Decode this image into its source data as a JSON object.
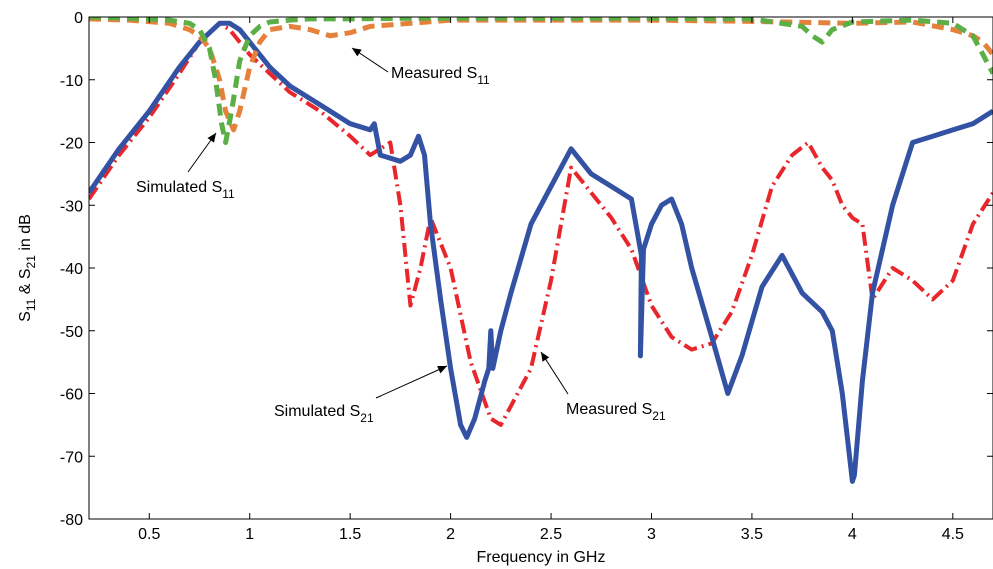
{
  "chart_data": {
    "type": "line",
    "xlabel": "Frequency in GHz",
    "ylabel_main": "S",
    "ylabel_sub1": "11",
    "ylabel_mid": " & S",
    "ylabel_sub2": "21",
    "ylabel_tail": " in dB",
    "xlim": [
      0.2,
      4.7
    ],
    "ylim": [
      -80,
      0
    ],
    "xticks": [
      0.5,
      1,
      1.5,
      2,
      2.5,
      3,
      3.5,
      4,
      4.5
    ],
    "xtick_labels": [
      "0.5",
      "1",
      "1.5",
      "2",
      "2.5",
      "3",
      "3.5",
      "4",
      "4.5"
    ],
    "yticks": [
      0,
      -10,
      -20,
      -30,
      -40,
      -50,
      -60,
      -70,
      -80
    ],
    "ytick_labels": [
      "0",
      "-10",
      "-20",
      "-30",
      "-40",
      "-50",
      "-60",
      "-70",
      "-80"
    ],
    "grid": false,
    "series": [
      {
        "key": "measured_s21",
        "color": "#e8262b",
        "style": "dash-dot",
        "x": [
          0.2,
          0.35,
          0.5,
          0.65,
          0.75,
          0.85,
          0.9,
          1.0,
          1.1,
          1.2,
          1.35,
          1.5,
          1.6,
          1.7,
          1.75,
          1.8,
          1.85,
          1.9,
          2.0,
          2.1,
          2.2,
          2.25,
          2.3,
          2.4,
          2.5,
          2.6,
          2.7,
          2.8,
          2.9,
          3.0,
          3.1,
          3.2,
          3.3,
          3.4,
          3.5,
          3.6,
          3.7,
          3.78,
          3.85,
          3.9,
          3.95,
          4.0,
          4.05,
          4.1,
          4.2,
          4.3,
          4.4,
          4.5,
          4.6,
          4.7
        ],
        "y": [
          -29,
          -22,
          -16,
          -9,
          -4,
          -1,
          -2,
          -6,
          -9,
          -12,
          -15,
          -19,
          -22,
          -20,
          -30,
          -46,
          -40,
          -32,
          -40,
          -55,
          -64,
          -65,
          -62,
          -56,
          -42,
          -24,
          -28,
          -32,
          -37,
          -46,
          -51,
          -53,
          -52,
          -47,
          -38,
          -27,
          -22,
          -20,
          -24,
          -26,
          -30,
          -32,
          -33,
          -45,
          -40,
          -42,
          -45,
          -42,
          -33,
          -28
        ]
      },
      {
        "key": "simulated_s21",
        "color": "#3452a3",
        "style": "solid",
        "x": [
          0.2,
          0.35,
          0.5,
          0.65,
          0.75,
          0.85,
          0.9,
          0.95,
          1.0,
          1.1,
          1.2,
          1.35,
          1.5,
          1.6,
          1.62,
          1.65,
          1.75,
          1.8,
          1.84,
          1.87,
          1.9,
          1.95,
          2.0,
          2.05,
          2.08,
          2.12,
          2.17,
          2.19,
          2.2,
          2.21,
          2.25,
          2.3,
          2.4,
          2.5,
          2.6,
          2.7,
          2.8,
          2.9,
          2.95,
          2.945,
          2.96,
          3.0,
          3.05,
          3.1,
          3.15,
          3.2,
          3.3,
          3.38,
          3.45,
          3.55,
          3.65,
          3.75,
          3.85,
          3.9,
          3.95,
          4.0,
          4.01,
          4.05,
          4.1,
          4.2,
          4.3,
          4.4,
          4.5,
          4.6,
          4.7
        ],
        "y": [
          -28,
          -21,
          -15,
          -8,
          -4,
          -1,
          -1,
          -2,
          -4,
          -8,
          -11,
          -14,
          -17,
          -18,
          -17,
          -22,
          -23,
          -22,
          -19,
          -22,
          -33,
          -45,
          -56,
          -65,
          -67,
          -64,
          -58,
          -56,
          -50,
          -56,
          -50,
          -44,
          -33,
          -27,
          -21,
          -25,
          -27,
          -29,
          -38,
          -54,
          -37,
          -33,
          -30,
          -29,
          -33,
          -40,
          -51,
          -60,
          -54,
          -43,
          -38,
          -44,
          -47,
          -50,
          -60,
          -74,
          -73,
          -58,
          -44,
          -30,
          -20,
          -19,
          -18,
          -17,
          -15
        ]
      },
      {
        "key": "measured_s11",
        "color": "#e5813b",
        "style": "dashed",
        "x": [
          0.2,
          0.4,
          0.6,
          0.7,
          0.75,
          0.8,
          0.85,
          0.88,
          0.92,
          0.95,
          1.0,
          1.05,
          1.1,
          1.2,
          1.3,
          1.4,
          1.5,
          1.6,
          1.8,
          2.0,
          2.5,
          3.0,
          3.5,
          4.0,
          4.3,
          4.5,
          4.6,
          4.65,
          4.7
        ],
        "y": [
          -0.3,
          -0.5,
          -1,
          -2,
          -3,
          -5,
          -10,
          -15,
          -18,
          -15,
          -8,
          -4,
          -2,
          -1.5,
          -2,
          -3,
          -2.5,
          -1.5,
          -1,
          -0.5,
          -0.5,
          -0.5,
          -0.7,
          -1,
          -0.8,
          -2,
          -3,
          -4,
          -6
        ]
      },
      {
        "key": "simulated_s11",
        "color": "#5cae46",
        "style": "dashed",
        "x": [
          0.2,
          0.4,
          0.6,
          0.7,
          0.75,
          0.8,
          0.83,
          0.86,
          0.88,
          0.91,
          0.95,
          1.0,
          1.05,
          1.1,
          1.2,
          1.3,
          1.5,
          1.8,
          2.0,
          2.5,
          3.0,
          3.5,
          3.75,
          3.8,
          3.85,
          3.9,
          4.0,
          4.3,
          4.5,
          4.6,
          4.65,
          4.7
        ],
        "y": [
          0,
          -0.2,
          -0.5,
          -1,
          -2,
          -5,
          -10,
          -17,
          -20,
          -15,
          -7,
          -3,
          -1.5,
          -0.8,
          -0.5,
          -0.3,
          -0.3,
          -0.2,
          -0.2,
          -0.2,
          -0.2,
          -0.3,
          -1.5,
          -3,
          -4,
          -2,
          -0.8,
          -0.5,
          -1,
          -3,
          -6,
          -9
        ]
      }
    ],
    "annotations": [
      {
        "key": "measured_s11",
        "text": "Measured S",
        "sub": "11"
      },
      {
        "key": "simulated_s11",
        "text": "Simulated S",
        "sub": "11"
      },
      {
        "key": "simulated_s21",
        "text": "Simulated S",
        "sub": "21"
      },
      {
        "key": "measured_s21",
        "text": "Measured S",
        "sub": "21"
      }
    ]
  }
}
